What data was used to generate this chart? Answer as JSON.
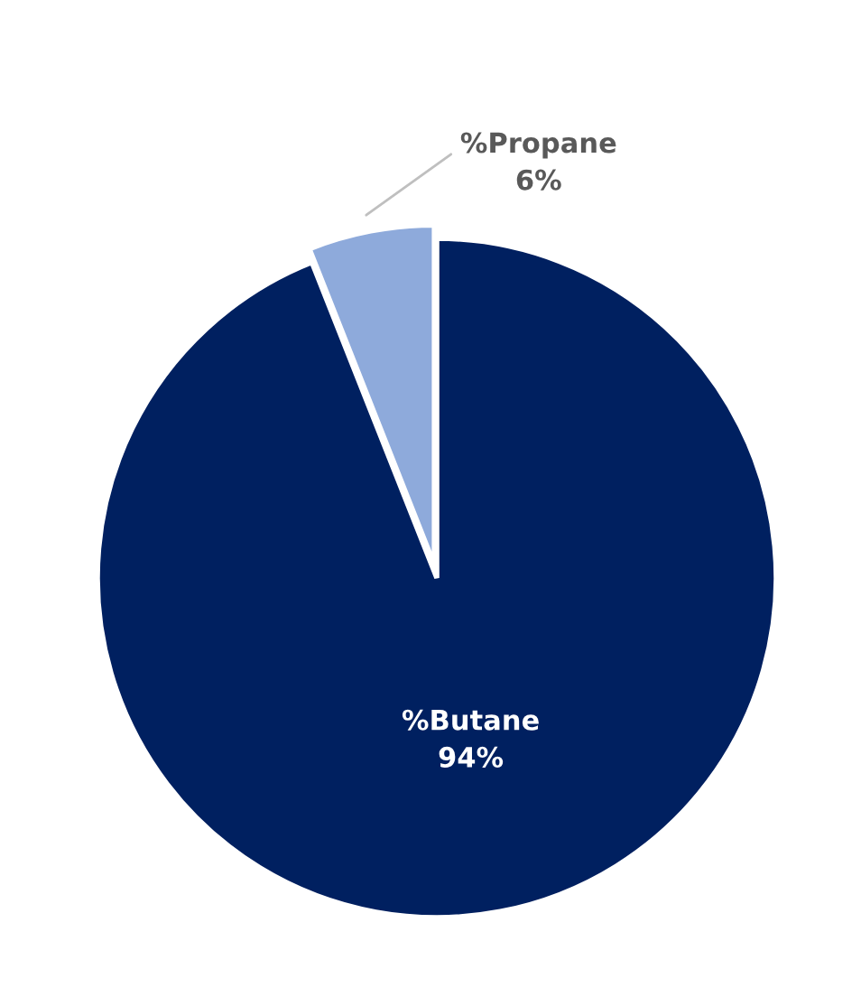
{
  "chart_data": {
    "type": "pie",
    "categories": [
      "%Butane",
      "%Propane"
    ],
    "values": [
      94,
      6
    ],
    "colors": [
      "#002060",
      "#8eaadb"
    ],
    "value_labels": [
      "94%",
      "6%"
    ],
    "legend": false
  }
}
